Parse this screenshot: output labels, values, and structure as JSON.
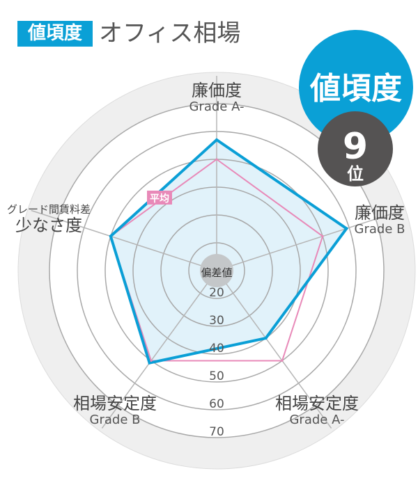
{
  "header": {
    "tag": "値頃度",
    "title": "オフィス相場"
  },
  "rank_badge": {
    "category": "値頃度",
    "rank": "9",
    "rank_suffix": "位",
    "category_color": "#0aa0d6",
    "rank_color": "#555353"
  },
  "chart_data": {
    "type": "radar",
    "center_label": "偏差値",
    "rmin": 10,
    "rmax": 80,
    "ticks": [
      20,
      30,
      40,
      50,
      60,
      70
    ],
    "tick_labels": [
      "20",
      "30",
      "40",
      "50",
      "60",
      "70"
    ],
    "axes": [
      {
        "label": "廉価度",
        "sub": "Grade A-"
      },
      {
        "label": "廉価度",
        "sub": "Grade B"
      },
      {
        "label": "相場安定度",
        "sub": "Grade A-"
      },
      {
        "label": "相場安定度",
        "sub": "Grade B"
      },
      {
        "label": "少なさ度",
        "pre": "グレード間賃料差"
      }
    ],
    "series": [
      {
        "name": "平均",
        "values": [
          50,
          50,
          50,
          50,
          50
        ],
        "color": "#e889b8"
      },
      {
        "values": [
          57,
          59,
          40,
          51,
          50
        ],
        "color": "#0a9fd6",
        "fill": "#e1f2fa"
      }
    ]
  }
}
